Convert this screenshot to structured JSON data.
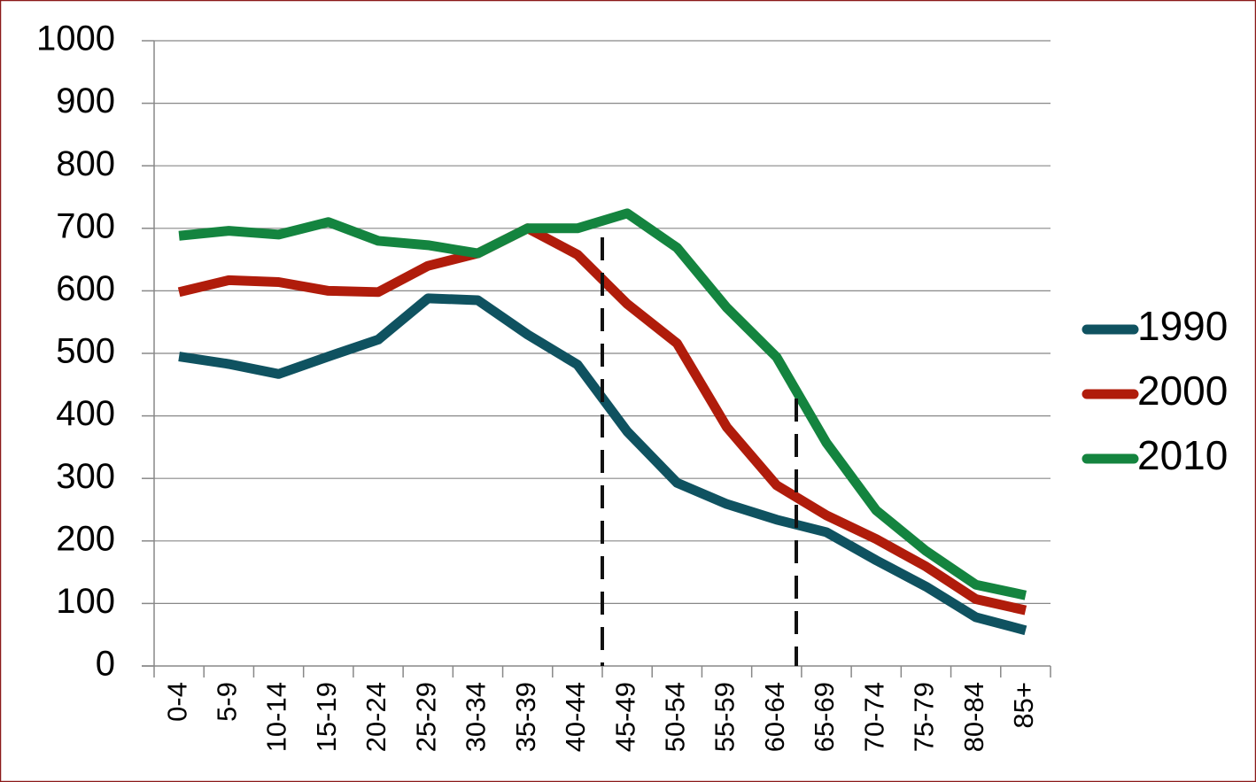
{
  "chart_data": {
    "type": "line",
    "categories": [
      "0-4",
      "5-9",
      "10-14",
      "15-19",
      "20-24",
      "25-29",
      "30-34",
      "35-39",
      "40-44",
      "45-49",
      "50-54",
      "55-59",
      "60-64",
      "65-69",
      "70-74",
      "75-79",
      "80-84",
      "85+"
    ],
    "series": [
      {
        "name": "1990",
        "color": "#0f5260",
        "values": [
          495,
          483,
          467,
          495,
          522,
          588,
          585,
          530,
          482,
          375,
          293,
          259,
          234,
          214,
          169,
          127,
          78,
          57
        ]
      },
      {
        "name": "2000",
        "color": "#b01c0b",
        "values": [
          598,
          617,
          614,
          600,
          598,
          640,
          660,
          700,
          658,
          579,
          516,
          382,
          289,
          241,
          203,
          159,
          107,
          89
        ]
      },
      {
        "name": "2010",
        "color": "#14843f",
        "values": [
          688,
          696,
          690,
          710,
          680,
          673,
          660,
          700,
          700,
          724,
          669,
          573,
          494,
          357,
          249,
          184,
          130,
          113
        ]
      }
    ],
    "ylim": [
      0,
      1000
    ],
    "yticks": [
      0,
      100,
      200,
      300,
      400,
      500,
      600,
      700,
      800,
      900,
      1000
    ],
    "grid": true,
    "legend": "right"
  }
}
